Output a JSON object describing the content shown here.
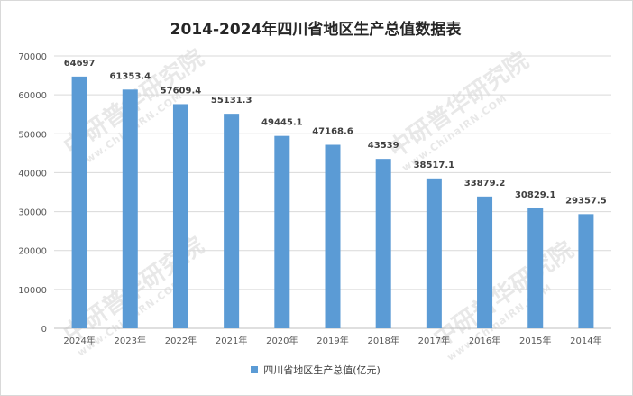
{
  "chart_data": {
    "type": "bar",
    "title": "2014-2024年四川省地区生产总值数据表",
    "categories": [
      "2024年",
      "2023年",
      "2022年",
      "2021年",
      "2020年",
      "2019年",
      "2018年",
      "2017年",
      "2016年",
      "2015年",
      "2014年"
    ],
    "series": [
      {
        "name": "四川省地区生产总值(亿元)",
        "values": [
          64697,
          61353.4,
          57609.4,
          55131.3,
          49445.1,
          47168.6,
          43539,
          38517.1,
          33879.2,
          30829.1,
          29357.5
        ],
        "labels": [
          "64697",
          "61353.4",
          "57609.4",
          "55131.3",
          "49445.1",
          "47168.6",
          "43539",
          "38517.1",
          "33879.2",
          "30829.1",
          "29357.5"
        ],
        "color": "#5b9bd5"
      }
    ],
    "yticks": [
      "0",
      "10000",
      "20000",
      "30000",
      "40000",
      "50000",
      "60000",
      "70000"
    ],
    "ylim": [
      0,
      70000
    ],
    "grid": true,
    "legend": "bottom"
  },
  "watermark": {
    "brand": "中研普华研究院",
    "site": "www.ChinaIRN.COM"
  },
  "colors": {
    "bar": "#5b9bd5",
    "grid": "#d9d9d9",
    "text": "#404040"
  }
}
